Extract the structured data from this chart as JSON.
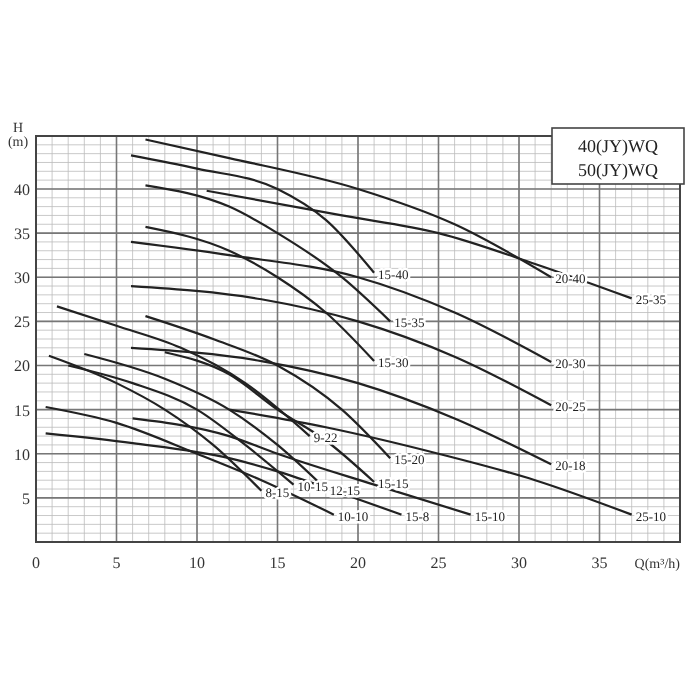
{
  "chart_data": {
    "type": "line",
    "title": "40(JY)WQ",
    "subtitle": "50(JY)WQ",
    "xlabel": "Q(m³/h)",
    "ylabel": "H\n(m)",
    "xlim": [
      0,
      40
    ],
    "ylim": [
      0,
      46
    ],
    "xticks": [
      0,
      5,
      10,
      15,
      20,
      25,
      30,
      35
    ],
    "yticks": [
      5,
      10,
      15,
      20,
      25,
      30,
      35,
      40
    ],
    "grid": true,
    "marker": "none",
    "line_style": "solid",
    "series": [
      {
        "name": "20-40",
        "color": "#222222",
        "x": [
          6.8,
          12,
          20,
          26,
          32
        ],
        "values": [
          45.6,
          43.5,
          40,
          36,
          30
        ]
      },
      {
        "name": "25-35",
        "color": "#222222",
        "x": [
          10.6,
          19,
          25,
          31,
          37
        ],
        "values": [
          39.8,
          37,
          35,
          31.5,
          27.6
        ]
      },
      {
        "name": "15-40",
        "color": "#222222",
        "x": [
          5.9,
          10,
          15,
          18,
          21
        ],
        "values": [
          43.8,
          42.3,
          40,
          36.5,
          30.5
        ]
      },
      {
        "name": "15-35",
        "color": "#222222",
        "x": [
          6.8,
          12,
          15,
          19,
          22
        ],
        "values": [
          40.4,
          38,
          35,
          30,
          25
        ]
      },
      {
        "name": "15-30",
        "color": "#222222",
        "x": [
          6.8,
          12,
          15,
          18,
          21
        ],
        "values": [
          35.7,
          33,
          30,
          26,
          20.5
        ]
      },
      {
        "name": "20-30",
        "color": "#222222",
        "x": [
          5.9,
          12,
          20,
          26,
          32
        ],
        "values": [
          34,
          32.5,
          30,
          26,
          20.4
        ]
      },
      {
        "name": "20-25",
        "color": "#222222",
        "x": [
          5.9,
          14,
          20,
          26,
          32
        ],
        "values": [
          29,
          27.5,
          25,
          21,
          15.5
        ]
      },
      {
        "name": "9-22",
        "color": "#222222",
        "x": [
          1.3,
          5,
          9,
          13,
          17
        ],
        "values": [
          26.7,
          24.5,
          22,
          18,
          12
        ]
      },
      {
        "name": "15-20",
        "color": "#222222",
        "x": [
          6.8,
          11,
          15,
          19,
          22
        ],
        "values": [
          25.6,
          23,
          20,
          15,
          9.5
        ]
      },
      {
        "name": "20-18",
        "color": "#222222",
        "x": [
          5.9,
          14,
          20,
          26,
          32
        ],
        "values": [
          22,
          20.5,
          18,
          14,
          8.8
        ]
      },
      {
        "name": "12-15",
        "color": "#222222",
        "x": [
          3,
          8,
          12,
          15,
          18
        ],
        "values": [
          21.3,
          18.5,
          15,
          11,
          6
        ]
      },
      {
        "name": "8-15",
        "color": "#222222",
        "x": [
          0.8,
          5,
          8,
          11,
          14
        ],
        "values": [
          21.1,
          18,
          15,
          11,
          5.8
        ]
      },
      {
        "name": "10-15",
        "color": "#222222",
        "x": [
          2,
          6,
          10,
          13,
          16
        ],
        "values": [
          20,
          18,
          15,
          11,
          6.5
        ]
      },
      {
        "name": "15-15",
        "color": "#222222",
        "x": [
          8,
          12,
          15,
          18,
          21
        ],
        "values": [
          21.5,
          19,
          15,
          11.5,
          6.8
        ]
      },
      {
        "name": "10-10",
        "color": "#222222",
        "x": [
          0.6,
          5,
          10,
          14,
          18.5
        ],
        "values": [
          15.3,
          13.5,
          10,
          7,
          3.1
        ]
      },
      {
        "name": "15-8",
        "color": "#222222",
        "x": [
          0.6,
          6,
          12,
          15,
          19,
          22.7
        ],
        "values": [
          12.3,
          11.2,
          9.5,
          8,
          5.5,
          3.1
        ]
      },
      {
        "name": "15-10",
        "color": "#222222",
        "x": [
          6,
          12,
          15,
          21,
          27
        ],
        "values": [
          14,
          12,
          10,
          6.5,
          3.1
        ]
      },
      {
        "name": "25-10",
        "color": "#222222",
        "x": [
          12,
          18,
          25,
          31,
          37
        ],
        "values": [
          15,
          13,
          10,
          7,
          3.1
        ]
      }
    ]
  }
}
